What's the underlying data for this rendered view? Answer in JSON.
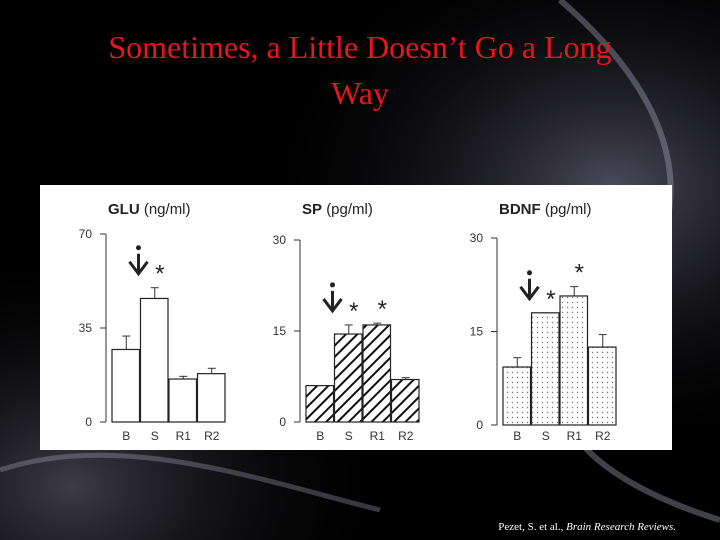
{
  "slide": {
    "title_line1": "Sometimes, a Little Doesn’t Go a Long",
    "title_line2": "Way",
    "citation_authors": "Pezet, S. et al.,",
    "citation_journal": "Brain Research Reviews."
  },
  "chart_data": [
    {
      "type": "bar",
      "title": "GLU",
      "unit": "(ng/ml)",
      "categories": [
        "B",
        "S",
        "R1",
        "R2"
      ],
      "values": [
        27,
        46,
        16,
        18
      ],
      "errors": [
        5,
        4,
        1,
        2
      ],
      "significance": [
        null,
        "*",
        null,
        null
      ],
      "pattern": "none",
      "ylim": [
        0,
        70
      ],
      "yticks": [
        0,
        35,
        70
      ]
    },
    {
      "type": "bar",
      "title": "SP",
      "unit": "(pg/ml)",
      "categories": [
        "B",
        "S",
        "R1",
        "R2"
      ],
      "values": [
        6,
        14.5,
        16,
        7
      ],
      "errors": [
        0,
        1.5,
        0.3,
        0.3
      ],
      "significance": [
        null,
        "*",
        "*",
        null
      ],
      "pattern": "hatch",
      "ylim": [
        0,
        30
      ],
      "yticks": [
        0,
        15,
        30
      ]
    },
    {
      "type": "bar",
      "title": "BDNF",
      "unit": "(pg/ml)",
      "categories": [
        "B",
        "S",
        "R1",
        "R2"
      ],
      "values": [
        9.3,
        18,
        20.7,
        12.5
      ],
      "errors": [
        1.5,
        0,
        1.5,
        2
      ],
      "significance": [
        null,
        "*",
        "*",
        null
      ],
      "pattern": "dots",
      "ylim": [
        0,
        30
      ],
      "yticks": [
        0,
        15,
        30
      ]
    }
  ]
}
